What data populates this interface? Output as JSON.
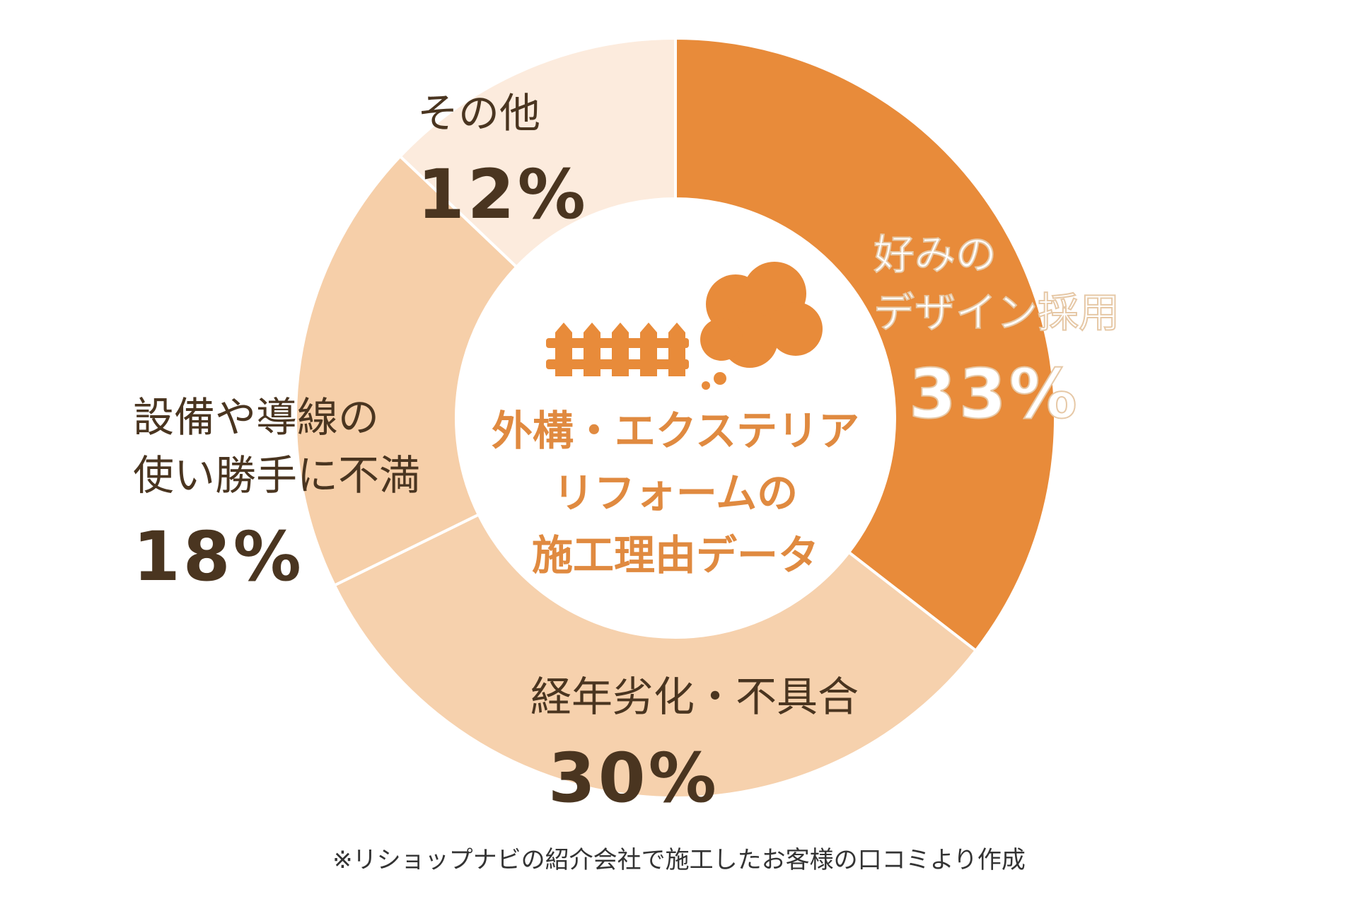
{
  "chart_data": {
    "type": "donut",
    "title": "外構・エクステリア\nリフォームの\n施工理由データ",
    "categories": [
      "好みの\nデザイン採用",
      "経年劣化・不具合",
      "設備や導線の\n使い勝手に不満",
      "その他"
    ],
    "values": [
      33,
      30,
      18,
      12
    ],
    "value_labels": [
      "33%",
      "30%",
      "18%",
      "12%"
    ],
    "colors": [
      "#e88b3a",
      "#f6d1ad",
      "#f6cfa9",
      "#fcebdd"
    ]
  },
  "footnote": "※リショップナビの紹介会社で施工したお客様の口コミより作成"
}
